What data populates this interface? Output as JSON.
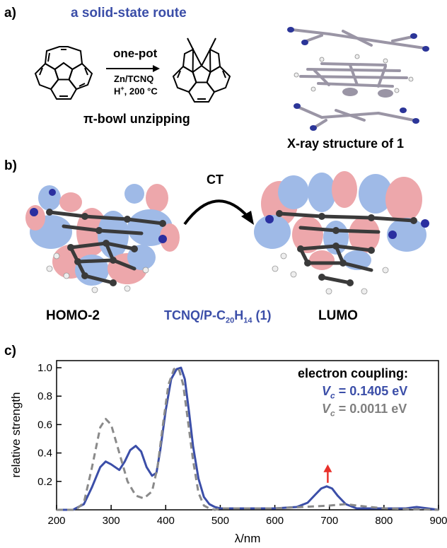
{
  "panel_a": {
    "label": "a)",
    "route_title": "a solid-state route",
    "arrow_top": "one-pot",
    "arrow_bottom_1": "Zn/TCNQ",
    "arrow_bottom_2_pre": "H",
    "arrow_bottom_2_sup": "+",
    "arrow_bottom_2_post": ", 200 °C",
    "caption": "π-bowl unzipping",
    "xray_caption": "X-ray structure of 1"
  },
  "panel_b": {
    "label": "b)",
    "ct_label": "CT",
    "left_label": "HOMO-2",
    "right_label": "LUMO",
    "center_pre": "TCNQ/P-C",
    "center_sub1": "20",
    "center_mid": "H",
    "center_sub2": "14",
    "center_post": " (1)",
    "colors": {
      "orbital_blue": "#7fa3e0",
      "orbital_red": "#e88a8f",
      "atom_c": "#3a3a3a",
      "atom_n": "#2a2fa0",
      "atom_h": "#e8e8e8"
    }
  },
  "panel_c": {
    "label": "c)",
    "legend_title": "electron coupling:",
    "legend_blue": "V",
    "legend_blue_sub": "c",
    "legend_blue_val": " = 0.1405 eV",
    "legend_grey": "V",
    "legend_grey_sub": "c",
    "legend_grey_val": " = 0.0011 eV",
    "colors": {
      "blue": "#3b4ea8",
      "grey": "#8a8a8a",
      "arrow": "#e8302a"
    }
  },
  "chart_data": {
    "type": "line",
    "xlabel": "λ/nm",
    "ylabel": "relative strength",
    "xlim": [
      200,
      900
    ],
    "ylim": [
      0,
      1.05
    ],
    "xticks": [
      200,
      300,
      400,
      500,
      600,
      700,
      800,
      900
    ],
    "yticks": [
      0.2,
      0.4,
      0.6,
      0.8,
      1.0
    ],
    "ytick_labels": [
      "0.2",
      "0.4",
      "0.6",
      "0.8",
      "1.0"
    ],
    "grid": false,
    "series": [
      {
        "name": "V_c = 0.1405 eV",
        "style": "solid",
        "x": [
          200,
          230,
          250,
          265,
          280,
          290,
          300,
          315,
          325,
          335,
          345,
          355,
          365,
          375,
          383,
          390,
          400,
          410,
          420,
          428,
          435,
          443,
          450,
          460,
          470,
          480,
          490,
          500,
          520,
          560,
          600,
          640,
          660,
          675,
          685,
          695,
          705,
          715,
          730,
          750,
          800,
          840,
          860,
          880,
          900
        ],
        "y": [
          0.0,
          0.0,
          0.04,
          0.16,
          0.3,
          0.34,
          0.32,
          0.28,
          0.34,
          0.42,
          0.45,
          0.41,
          0.3,
          0.24,
          0.26,
          0.42,
          0.7,
          0.92,
          0.99,
          1.0,
          0.92,
          0.68,
          0.45,
          0.22,
          0.09,
          0.04,
          0.02,
          0.01,
          0.01,
          0.01,
          0.01,
          0.02,
          0.05,
          0.11,
          0.15,
          0.165,
          0.15,
          0.1,
          0.04,
          0.01,
          0.01,
          0.01,
          0.02,
          0.01,
          0.0
        ]
      },
      {
        "name": "V_c = 0.0011 eV",
        "style": "dashed",
        "x": [
          200,
          235,
          250,
          265,
          280,
          290,
          300,
          315,
          330,
          345,
          360,
          375,
          385,
          395,
          405,
          415,
          420,
          425,
          432,
          440,
          450,
          460,
          470,
          480,
          490,
          500,
          550,
          600,
          650,
          700,
          730,
          750,
          800,
          900
        ],
        "y": [
          0.0,
          0.0,
          0.05,
          0.3,
          0.58,
          0.64,
          0.6,
          0.4,
          0.2,
          0.1,
          0.08,
          0.13,
          0.3,
          0.6,
          0.88,
          0.99,
          1.0,
          0.98,
          0.88,
          0.65,
          0.35,
          0.12,
          0.03,
          0.01,
          0.0,
          0.01,
          0.01,
          0.01,
          0.02,
          0.03,
          0.04,
          0.03,
          0.01,
          0.0
        ]
      }
    ],
    "annotations": [
      {
        "type": "arrow",
        "x": 697,
        "y_from": 0.19,
        "y_to": 0.32,
        "color": "#e8302a"
      }
    ]
  }
}
